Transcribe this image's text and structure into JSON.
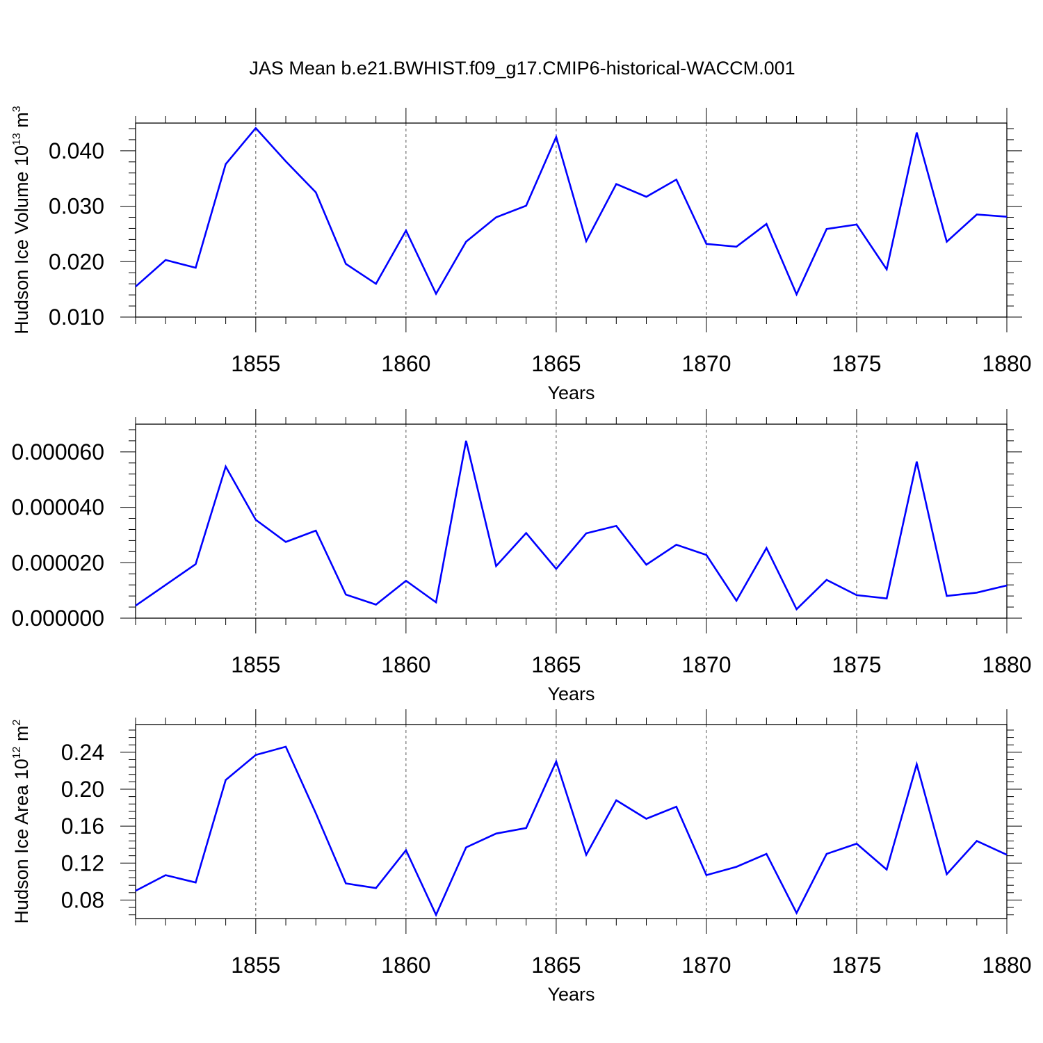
{
  "title": "JAS Mean b.e21.BWHIST.f09_g17.CMIP6-historical-WACCM.001",
  "colors": {
    "line": "#0000ff",
    "axis": "#000000",
    "grid": "#555555"
  },
  "chart_data": [
    {
      "type": "line",
      "ylabel_main": "Hudson Ice Volume 10",
      "ylabel_exp": "13",
      "ylabel_unit": " m",
      "ylabel_unit_exp": "3",
      "xlabel": "Years",
      "xlim": [
        1851,
        1880
      ],
      "ylim": [
        0.01,
        0.045
      ],
      "x_ticks": [
        "1855",
        "1860",
        "1865",
        "1870",
        "1875",
        "1880"
      ],
      "y_ticks": [
        "0.010",
        "0.020",
        "0.030",
        "0.040"
      ],
      "x": [
        1851,
        1852,
        1853,
        1854,
        1855,
        1856,
        1857,
        1858,
        1859,
        1860,
        1861,
        1862,
        1863,
        1864,
        1865,
        1866,
        1867,
        1868,
        1869,
        1870,
        1871,
        1872,
        1873,
        1874,
        1875,
        1876,
        1877,
        1878,
        1879,
        1880
      ],
      "values": [
        0.0155,
        0.0203,
        0.0189,
        0.0376,
        0.0441,
        0.0381,
        0.0325,
        0.0196,
        0.016,
        0.0256,
        0.0142,
        0.0236,
        0.028,
        0.0301,
        0.0425,
        0.0237,
        0.034,
        0.0317,
        0.0348,
        0.0232,
        0.0227,
        0.0268,
        0.0141,
        0.0259,
        0.0267,
        0.0186,
        0.0433,
        0.0236,
        0.0285,
        0.0281
      ]
    },
    {
      "type": "line",
      "xlabel": "Years",
      "xlim": [
        1851,
        1880
      ],
      "ylim": [
        0.0,
        7e-05
      ],
      "x_ticks": [
        "1855",
        "1860",
        "1865",
        "1870",
        "1875",
        "1880"
      ],
      "y_ticks": [
        "0.000000",
        "0.000020",
        "0.000040",
        "0.000060"
      ],
      "x": [
        1851,
        1852,
        1853,
        1854,
        1855,
        1856,
        1857,
        1858,
        1859,
        1860,
        1861,
        1862,
        1863,
        1864,
        1865,
        1866,
        1867,
        1868,
        1869,
        1870,
        1871,
        1872,
        1873,
        1874,
        1875,
        1876,
        1877,
        1878,
        1879,
        1880
      ],
      "values": [
        4.5e-06,
        1.2e-05,
        1.95e-05,
        5.47e-05,
        3.55e-05,
        2.75e-05,
        3.16e-05,
        8.5e-06,
        4.9e-06,
        1.35e-05,
        5.7e-06,
        6.4e-05,
        1.88e-05,
        3.07e-05,
        1.78e-05,
        3.06e-05,
        3.33e-05,
        1.93e-05,
        2.65e-05,
        2.28e-05,
        6.3e-06,
        2.53e-05,
        3.2e-06,
        1.38e-05,
        8.3e-06,
        7.1e-06,
        5.65e-05,
        8e-06,
        9.2e-06,
        1.18e-05
      ]
    },
    {
      "type": "line",
      "ylabel_main": "Hudson Ice Area 10",
      "ylabel_exp": "12",
      "ylabel_unit": " m",
      "ylabel_unit_exp": "2",
      "xlabel": "Years",
      "xlim": [
        1851,
        1880
      ],
      "ylim": [
        0.06,
        0.27
      ],
      "x_ticks": [
        "1855",
        "1860",
        "1865",
        "1870",
        "1875",
        "1880"
      ],
      "y_ticks": [
        "0.08",
        "0.12",
        "0.16",
        "0.20",
        "0.24"
      ],
      "x": [
        1851,
        1852,
        1853,
        1854,
        1855,
        1856,
        1857,
        1858,
        1859,
        1860,
        1861,
        1862,
        1863,
        1864,
        1865,
        1866,
        1867,
        1868,
        1869,
        1870,
        1871,
        1872,
        1873,
        1874,
        1875,
        1876,
        1877,
        1878,
        1879,
        1880
      ],
      "values": [
        0.09,
        0.107,
        0.099,
        0.21,
        0.237,
        0.246,
        0.174,
        0.098,
        0.093,
        0.134,
        0.064,
        0.137,
        0.152,
        0.158,
        0.23,
        0.129,
        0.188,
        0.168,
        0.181,
        0.107,
        0.116,
        0.13,
        0.066,
        0.13,
        0.141,
        0.113,
        0.227,
        0.108,
        0.144,
        0.129
      ]
    }
  ]
}
